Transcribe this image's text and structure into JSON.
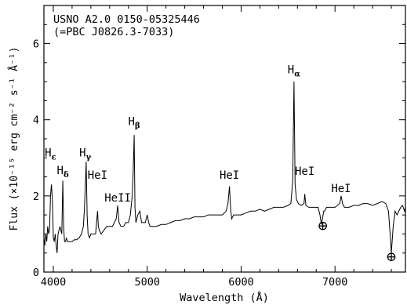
{
  "chart_data": {
    "type": "line",
    "title_lines": [
      "USNO A2.0 0150-05325446",
      "(=PBC J0826.3-7033)"
    ],
    "xlabel": "Wavelength (Å)",
    "ylabel": "Flux (×10⁻¹⁵ erg cm⁻² s⁻¹ Å⁻¹)",
    "xlim": [
      3900,
      7750
    ],
    "ylim": [
      0,
      7
    ],
    "xticks": [
      4000,
      5000,
      6000,
      7000
    ],
    "xtick_labels": [
      "4000",
      "5000",
      "6000",
      "7000"
    ],
    "yticks": [
      0,
      2,
      4,
      6
    ],
    "ytick_labels": [
      "0",
      "2",
      "4",
      "6"
    ],
    "grid": false,
    "legend": "none",
    "series": [
      {
        "x": [
          3900,
          3910,
          3920,
          3930,
          3940,
          3950,
          3960,
          3970,
          3980,
          3990,
          4000,
          4010,
          4020,
          4030,
          4040,
          4050,
          4060,
          4070,
          4080,
          4090,
          4101,
          4110,
          4120,
          4130,
          4140,
          4150,
          4175,
          4200,
          4225,
          4250,
          4275,
          4300,
          4320,
          4330,
          4340,
          4350,
          4360,
          4370,
          4385,
          4400,
          4425,
          4450,
          4471,
          4480,
          4490,
          4510,
          4540,
          4570,
          4600,
          4630,
          4650,
          4670,
          4686,
          4700,
          4720,
          4750,
          4770,
          4800,
          4820,
          4840,
          4850,
          4861,
          4870,
          4880,
          4900,
          4922,
          4940,
          4960,
          4980,
          5000,
          5016,
          5030,
          5060,
          5100,
          5150,
          5200,
          5250,
          5300,
          5350,
          5400,
          5450,
          5500,
          5550,
          5600,
          5650,
          5700,
          5750,
          5800,
          5840,
          5860,
          5876,
          5890,
          5900,
          5920,
          5950,
          6000,
          6050,
          6100,
          6150,
          6200,
          6250,
          6300,
          6350,
          6400,
          6450,
          6500,
          6530,
          6550,
          6563,
          6575,
          6590,
          6610,
          6640,
          6670,
          6678,
          6690,
          6720,
          6750,
          6780,
          6800,
          6820,
          6840,
          6855,
          6870,
          6880,
          6890,
          6910,
          6950,
          7000,
          7050,
          7065,
          7080,
          7100,
          7150,
          7200,
          7250,
          7300,
          7350,
          7400,
          7450,
          7500,
          7540,
          7570,
          7590,
          7600,
          7620,
          7640,
          7660,
          7680,
          7700,
          7720,
          7740,
          7750
        ],
        "y": [
          0.9,
          0.7,
          1.0,
          0.8,
          1.2,
          1.0,
          1.1,
          2.0,
          2.3,
          1.9,
          0.9,
          0.8,
          1.0,
          0.7,
          0.5,
          1.0,
          1.1,
          1.2,
          1.1,
          1.0,
          2.4,
          1.2,
          0.8,
          0.8,
          0.9,
          0.8,
          0.8,
          0.8,
          0.85,
          0.85,
          0.9,
          1.0,
          1.2,
          1.6,
          2.2,
          2.9,
          1.5,
          1.0,
          0.9,
          1.0,
          1.0,
          1.0,
          1.6,
          1.2,
          1.1,
          1.0,
          1.1,
          1.2,
          1.2,
          1.2,
          1.3,
          1.4,
          1.75,
          1.3,
          1.2,
          1.2,
          1.3,
          1.3,
          1.5,
          2.0,
          2.6,
          3.6,
          1.7,
          1.3,
          1.5,
          1.6,
          1.3,
          1.3,
          1.3,
          1.5,
          1.3,
          1.2,
          1.2,
          1.2,
          1.25,
          1.25,
          1.3,
          1.35,
          1.35,
          1.4,
          1.4,
          1.45,
          1.45,
          1.45,
          1.5,
          1.5,
          1.5,
          1.5,
          1.6,
          1.8,
          2.25,
          1.6,
          1.4,
          1.5,
          1.5,
          1.5,
          1.55,
          1.6,
          1.6,
          1.65,
          1.6,
          1.65,
          1.7,
          1.7,
          1.7,
          1.75,
          1.8,
          2.4,
          5.0,
          2.3,
          1.9,
          1.8,
          1.75,
          1.8,
          2.05,
          1.75,
          1.7,
          1.7,
          1.7,
          1.7,
          1.7,
          1.5,
          1.25,
          1.45,
          1.6,
          1.6,
          1.7,
          1.7,
          1.7,
          1.8,
          2.0,
          1.8,
          1.7,
          1.7,
          1.75,
          1.75,
          1.8,
          1.8,
          1.75,
          1.8,
          1.85,
          1.8,
          1.6,
          0.9,
          0.5,
          1.2,
          1.6,
          1.5,
          1.6,
          1.7,
          1.75,
          1.6,
          1.7
        ]
      }
    ],
    "annotations": [
      {
        "base": "H",
        "sub": "ε",
        "x": 3970,
        "label_y": 3.04
      },
      {
        "base": "H",
        "sub": "δ",
        "x": 4101,
        "label_y": 2.57
      },
      {
        "base": "H",
        "sub": "γ",
        "x": 4340,
        "label_y": 3.04
      },
      {
        "base": "HeI",
        "x": 4471,
        "label_y": 2.45
      },
      {
        "base": "HeII",
        "x": 4686,
        "label_y": 1.85
      },
      {
        "base": "H",
        "sub": "β",
        "x": 4861,
        "label_y": 3.86
      },
      {
        "base": "HeI",
        "x": 5876,
        "label_y": 2.45
      },
      {
        "base": "H",
        "sub": "α",
        "x": 6563,
        "label_y": 5.22
      },
      {
        "base": "HeI",
        "x": 6678,
        "label_y": 2.55
      },
      {
        "base": "HeI",
        "x": 7065,
        "label_y": 2.1
      },
      {
        "base": "⊕",
        "x": 6870,
        "label_y": 1.1
      },
      {
        "base": "⊕",
        "x": 7600,
        "label_y": 0.29
      }
    ]
  }
}
